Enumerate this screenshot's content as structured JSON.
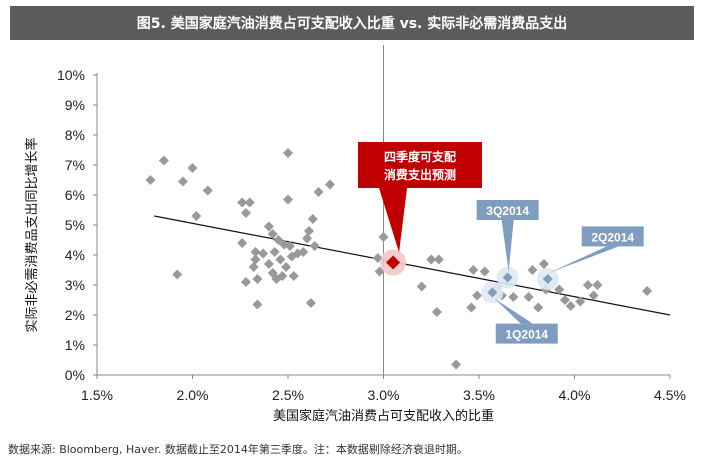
{
  "chart_data": {
    "type": "scatter",
    "title": "图5. 美国家庭汽油消费占可支配收入比重 vs. 实际非必需消费品支出",
    "xlabel": "美国家庭汽油消费占可支配收入的比重",
    "ylabel": "实际非必需消费品支出同比增长率",
    "xlim": [
      1.5,
      4.5
    ],
    "ylim": [
      0,
      10
    ],
    "x_ticks": [
      "1.5%",
      "2.0%",
      "2.5%",
      "3.0%",
      "3.5%",
      "4.0%",
      "4.5%"
    ],
    "y_ticks": [
      "0%",
      "1%",
      "2%",
      "3%",
      "4%",
      "5%",
      "6%",
      "7%",
      "8%",
      "9%",
      "10%"
    ],
    "reference_line_x": 3.0,
    "point_color": "#999999",
    "trend_color": "#111111",
    "highlight_color": "#c00000",
    "label_color": "#7f9dbf",
    "points": [
      [
        1.78,
        6.5
      ],
      [
        1.85,
        7.15
      ],
      [
        1.92,
        3.35
      ],
      [
        1.95,
        6.45
      ],
      [
        2.0,
        6.9
      ],
      [
        2.02,
        5.3
      ],
      [
        2.08,
        6.15
      ],
      [
        2.26,
        5.75
      ],
      [
        2.26,
        4.4
      ],
      [
        2.28,
        5.4
      ],
      [
        2.28,
        3.1
      ],
      [
        2.3,
        5.75
      ],
      [
        2.32,
        3.6
      ],
      [
        2.33,
        4.1
      ],
      [
        2.33,
        3.85
      ],
      [
        2.34,
        3.2
      ],
      [
        2.34,
        2.35
      ],
      [
        2.37,
        4.05
      ],
      [
        2.4,
        4.95
      ],
      [
        2.4,
        3.7
      ],
      [
        2.42,
        4.7
      ],
      [
        2.42,
        3.4
      ],
      [
        2.43,
        4.1
      ],
      [
        2.44,
        3.2
      ],
      [
        2.45,
        4.5
      ],
      [
        2.46,
        3.85
      ],
      [
        2.47,
        3.3
      ],
      [
        2.48,
        4.35
      ],
      [
        2.49,
        3.6
      ],
      [
        2.5,
        7.4
      ],
      [
        2.5,
        5.85
      ],
      [
        2.51,
        4.3
      ],
      [
        2.52,
        3.95
      ],
      [
        2.53,
        3.3
      ],
      [
        2.55,
        4.05
      ],
      [
        2.58,
        4.1
      ],
      [
        2.6,
        4.55
      ],
      [
        2.61,
        4.8
      ],
      [
        2.62,
        2.4
      ],
      [
        2.63,
        5.2
      ],
      [
        2.64,
        4.3
      ],
      [
        2.66,
        6.1
      ],
      [
        2.72,
        6.35
      ],
      [
        2.97,
        3.9
      ],
      [
        2.98,
        3.45
      ],
      [
        3.0,
        4.6
      ],
      [
        3.2,
        2.95
      ],
      [
        3.25,
        3.85
      ],
      [
        3.28,
        2.1
      ],
      [
        3.29,
        3.85
      ],
      [
        3.38,
        0.35
      ],
      [
        3.46,
        2.25
      ],
      [
        3.47,
        3.5
      ],
      [
        3.49,
        2.65
      ],
      [
        3.53,
        3.45
      ],
      [
        3.6,
        2.95
      ],
      [
        3.62,
        2.65
      ],
      [
        3.68,
        2.6
      ],
      [
        3.76,
        2.6
      ],
      [
        3.78,
        3.5
      ],
      [
        3.81,
        2.25
      ],
      [
        3.84,
        3.7
      ],
      [
        3.85,
        2.85
      ],
      [
        3.92,
        2.85
      ],
      [
        3.95,
        2.5
      ],
      [
        3.98,
        2.3
      ],
      [
        4.03,
        2.45
      ],
      [
        4.07,
        3.0
      ],
      [
        4.1,
        2.65
      ],
      [
        4.12,
        3.0
      ],
      [
        4.38,
        2.8
      ]
    ],
    "highlight_points": [
      {
        "label": "3Q2014",
        "x": 3.65,
        "y": 3.25,
        "label_pos": [
          3.65,
          5.5
        ]
      },
      {
        "label": "2Q2014",
        "x": 3.86,
        "y": 3.2,
        "label_pos": [
          4.2,
          4.62
        ]
      },
      {
        "label": "1Q2014",
        "x": 3.57,
        "y": 2.75,
        "label_pos": [
          3.75,
          1.38
        ]
      }
    ],
    "forecast_point": {
      "label": "四季度可支配\n消费支出预测",
      "x": 3.05,
      "y": 3.75
    },
    "trendline": [
      [
        1.8,
        5.3
      ],
      [
        4.5,
        2.0
      ]
    ]
  },
  "footnote": "数据来源: Bloomberg, Haver. 数据截止至2014年第三季度。注：本数据剔除经济衰退时期。"
}
